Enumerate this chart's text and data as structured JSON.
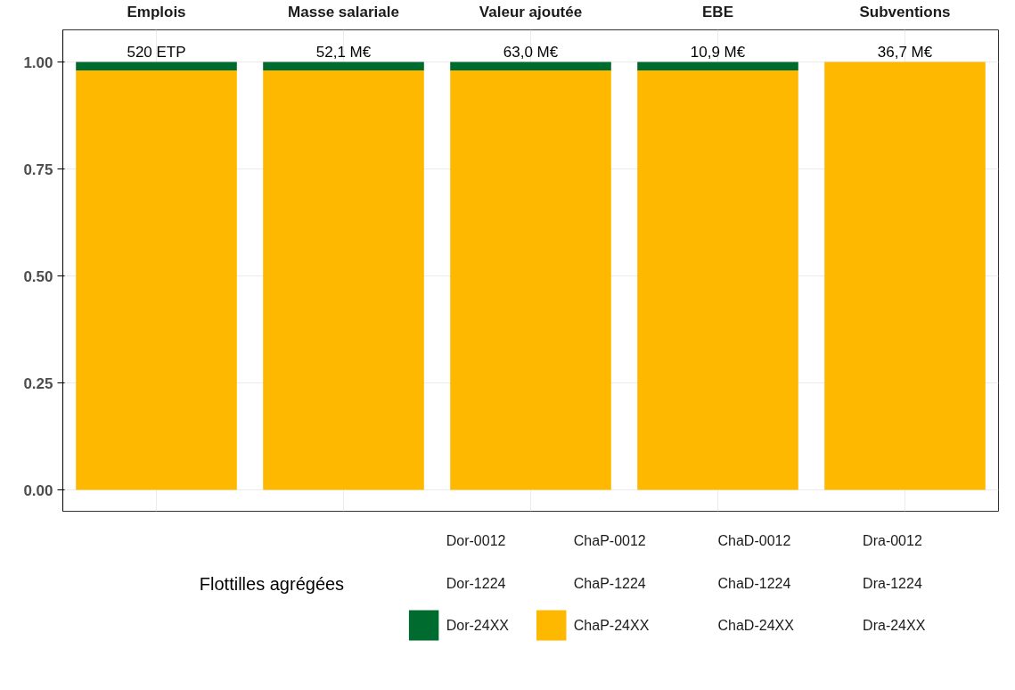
{
  "chart_data": {
    "type": "bar",
    "categories": [
      "Emplois",
      "Masse salariale",
      "Valeur ajoutée",
      "EBE",
      "Subventions"
    ],
    "stacked": true,
    "ylim": [
      -0.05,
      1.075
    ],
    "yticks": [
      {
        "value": 0,
        "label": "0.00"
      },
      {
        "value": 0.25,
        "label": "0.25"
      },
      {
        "value": 0.5,
        "label": "0.50"
      },
      {
        "value": 0.75,
        "label": "0.75"
      },
      {
        "value": 1,
        "label": "1.00"
      }
    ],
    "grid": true,
    "legend": "bottom",
    "legend_title": "Flottilles agrégées",
    "annotations": [
      {
        "text": "520 ETP",
        "x": "Emplois",
        "y": 1.0
      },
      {
        "text": "52,1 M€",
        "x": "Masse salariale",
        "y": 1.0
      },
      {
        "text": "63,0 M€",
        "x": "Valeur ajoutée",
        "y": 1.0
      },
      {
        "text": "10,9 M€",
        "x": "EBE",
        "y": 1.0
      },
      {
        "text": "36,7 M€",
        "x": "Subventions",
        "y": 1.0
      }
    ],
    "series": [
      {
        "name": "Dra-24XX",
        "values": [
          0,
          0,
          0,
          0,
          0
        ]
      },
      {
        "name": "Dra-1224",
        "values": [
          0,
          0,
          0,
          0,
          0
        ]
      },
      {
        "name": "Dra-0012",
        "values": [
          0,
          0,
          0,
          0,
          0
        ]
      },
      {
        "name": "ChaD-24XX",
        "values": [
          0,
          0,
          0,
          0,
          0
        ]
      },
      {
        "name": "ChaD-1224",
        "values": [
          0,
          0,
          0,
          0,
          0
        ]
      },
      {
        "name": "ChaD-0012",
        "values": [
          0,
          0,
          0,
          0,
          0
        ]
      },
      {
        "name": "ChaP-24XX",
        "color": "#ffb800",
        "values": [
          0.98,
          0.98,
          0.98,
          0.98,
          1.0
        ]
      },
      {
        "name": "ChaP-1224",
        "values": [
          0,
          0,
          0,
          0,
          0
        ]
      },
      {
        "name": "ChaP-0012",
        "values": [
          0,
          0,
          0,
          0,
          0
        ]
      },
      {
        "name": "Dor-24XX",
        "color": "#006b2e",
        "values": [
          0.02,
          0.02,
          0.02,
          0.02,
          0
        ]
      },
      {
        "name": "Dor-1224",
        "values": [
          0,
          0,
          0,
          0,
          0
        ]
      },
      {
        "name": "Dor-0012",
        "values": [
          0,
          0,
          0,
          0,
          0
        ]
      }
    ]
  }
}
